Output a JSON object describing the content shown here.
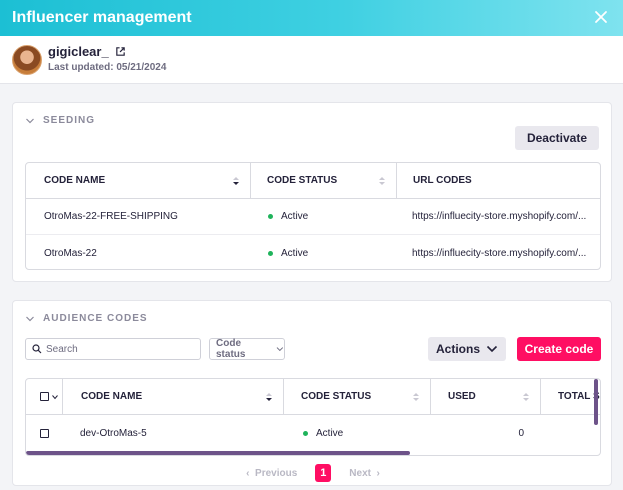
{
  "header": {
    "title": "Influencer management"
  },
  "profile": {
    "username": "gigiclear_",
    "last_updated": "Last updated: 05/21/2024"
  },
  "seeding": {
    "section_title": "SEEDING",
    "deactivate_label": "Deactivate",
    "columns": [
      "CODE NAME",
      "CODE STATUS",
      "URL CODES"
    ],
    "rows": [
      {
        "code_name": "OtroMas-22-FREE-SHIPPING",
        "status": "Active",
        "url": "https://influecity-store.myshopify.com/..."
      },
      {
        "code_name": "OtroMas-22",
        "status": "Active",
        "url": "https://influecity-store.myshopify.com/..."
      }
    ]
  },
  "audience": {
    "section_title": "AUDIENCE CODES",
    "search_placeholder": "Search",
    "status_filter": "Code status",
    "actions_label": "Actions",
    "create_label": "Create code",
    "columns": [
      "CODE NAME",
      "CODE STATUS",
      "USED",
      "TOTAL SA"
    ],
    "rows": [
      {
        "code_name": "dev-OtroMas-5",
        "status": "Active",
        "used": "0"
      }
    ]
  },
  "pagination": {
    "previous": "Previous",
    "current": "1",
    "next": "Next"
  },
  "colors": {
    "accent": "#ff0e63",
    "header": "#1cbfd4",
    "active": "#1fb35b",
    "scrollbar": "#6d5389"
  }
}
